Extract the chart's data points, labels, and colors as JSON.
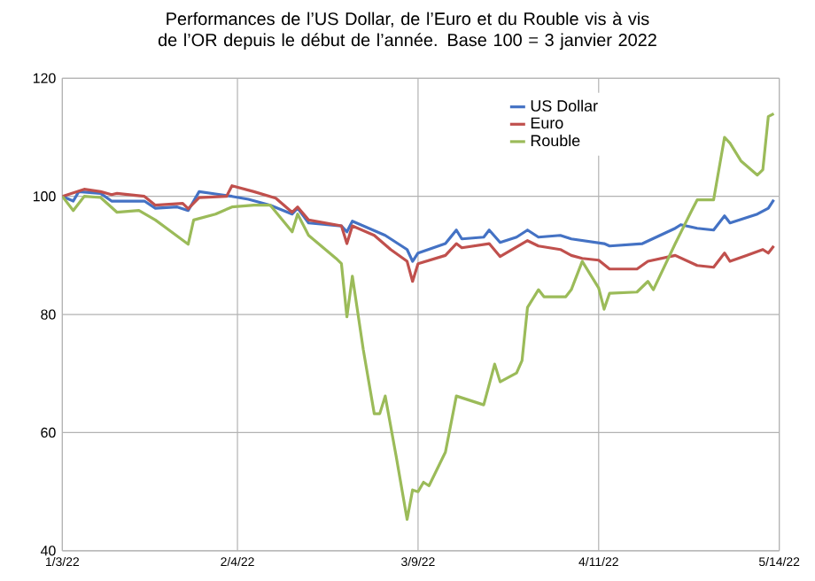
{
  "chart_data": {
    "type": "line",
    "title": "Performances de l’US Dollar, de l’Euro et du Rouble vis à vis de l’OR depuis le début de l’année. Base 100 = 3 janvier 2022",
    "xlim": [
      "2022-01-03",
      "2022-05-14"
    ],
    "xticks": [
      {
        "value": "2022-01-03",
        "label": "1/3/22"
      },
      {
        "value": "2022-02-04",
        "label": "2/4/22"
      },
      {
        "value": "2022-03-09",
        "label": "3/9/22"
      },
      {
        "value": "2022-04-11",
        "label": "4/11/22"
      },
      {
        "value": "2022-05-14",
        "label": "5/14/22"
      }
    ],
    "ylim": [
      40,
      120
    ],
    "yticks": [
      40,
      60,
      80,
      100,
      120
    ],
    "grid": true,
    "legend": "top right",
    "series": [
      {
        "name": "US Dollar",
        "color": "#4472c4",
        "x": [
          "2022-01-03",
          "2022-01-05",
          "2022-01-06",
          "2022-01-10",
          "2022-01-12",
          "2022-01-18",
          "2022-01-20",
          "2022-01-24",
          "2022-01-26",
          "2022-01-28",
          "2022-01-31",
          "2022-02-03",
          "2022-02-06",
          "2022-02-10",
          "2022-02-14",
          "2022-02-15",
          "2022-02-17",
          "2022-02-23",
          "2022-02-24",
          "2022-02-25",
          "2022-03-03",
          "2022-03-07",
          "2022-03-08",
          "2022-03-09",
          "2022-03-14",
          "2022-03-16",
          "2022-03-17",
          "2022-03-21",
          "2022-03-22",
          "2022-03-24",
          "2022-03-27",
          "2022-03-29",
          "2022-03-31",
          "2022-04-04",
          "2022-04-06",
          "2022-04-12",
          "2022-04-13",
          "2022-04-19",
          "2022-04-25",
          "2022-04-26",
          "2022-04-29",
          "2022-05-02",
          "2022-05-04",
          "2022-05-05",
          "2022-05-10",
          "2022-05-12",
          "2022-05-13"
        ],
        "values": [
          100,
          99.2,
          100.8,
          100.5,
          99.2,
          99.2,
          98,
          98.2,
          97.6,
          100.8,
          100.4,
          100,
          99.5,
          98.5,
          97,
          98,
          95.5,
          95,
          94,
          95.8,
          93.4,
          91,
          89,
          90.4,
          92,
          94.3,
          92.8,
          93.1,
          94.3,
          92.2,
          93.1,
          94.3,
          93.1,
          93.4,
          92.8,
          92,
          91.6,
          92,
          94.6,
          95.2,
          94.6,
          94.3,
          96.7,
          95.5,
          97,
          98,
          99.4
        ]
      },
      {
        "name": "Euro",
        "color": "#c0504d",
        "x": [
          "2022-01-03",
          "2022-01-07",
          "2022-01-10",
          "2022-01-12",
          "2022-01-13",
          "2022-01-18",
          "2022-01-20",
          "2022-01-25",
          "2022-01-26",
          "2022-01-28",
          "2022-02-02",
          "2022-02-03",
          "2022-02-07",
          "2022-02-11",
          "2022-02-14",
          "2022-02-15",
          "2022-02-17",
          "2022-02-23",
          "2022-02-24",
          "2022-02-25",
          "2022-03-01",
          "2022-03-04",
          "2022-03-07",
          "2022-03-08",
          "2022-03-09",
          "2022-03-14",
          "2022-03-16",
          "2022-03-17",
          "2022-03-22",
          "2022-03-24",
          "2022-03-29",
          "2022-03-31",
          "2022-04-04",
          "2022-04-06",
          "2022-04-08",
          "2022-04-11",
          "2022-04-13",
          "2022-04-18",
          "2022-04-20",
          "2022-04-25",
          "2022-04-29",
          "2022-05-02",
          "2022-05-04",
          "2022-05-05",
          "2022-05-08",
          "2022-05-11",
          "2022-05-12",
          "2022-05-13"
        ],
        "values": [
          100,
          101.2,
          100.8,
          100.3,
          100.5,
          100,
          98.5,
          98.8,
          97.9,
          99.8,
          100,
          101.8,
          100.8,
          99.7,
          97.3,
          98.2,
          96,
          95,
          92,
          95,
          93.4,
          91,
          89,
          85.6,
          88.6,
          90,
          92,
          91.3,
          92,
          89.8,
          92.5,
          91.6,
          91,
          90,
          89.5,
          89.2,
          87.7,
          87.7,
          89,
          90,
          88.3,
          88,
          90.4,
          89,
          90,
          91,
          90.4,
          91.6
        ]
      },
      {
        "name": "Rouble",
        "color": "#9bbb59",
        "x": [
          "2022-01-03",
          "2022-01-05",
          "2022-01-07",
          "2022-01-10",
          "2022-01-13",
          "2022-01-17",
          "2022-01-20",
          "2022-01-26",
          "2022-01-27",
          "2022-01-31",
          "2022-02-03",
          "2022-02-07",
          "2022-02-10",
          "2022-02-14",
          "2022-02-15",
          "2022-02-17",
          "2022-02-22",
          "2022-02-23",
          "2022-02-24",
          "2022-02-25",
          "2022-02-27",
          "2022-03-01",
          "2022-03-02",
          "2022-03-03",
          "2022-03-05",
          "2022-03-07",
          "2022-03-08",
          "2022-03-09",
          "2022-03-10",
          "2022-03-11",
          "2022-03-14",
          "2022-03-16",
          "2022-03-18",
          "2022-03-21",
          "2022-03-23",
          "2022-03-24",
          "2022-03-27",
          "2022-03-28",
          "2022-03-29",
          "2022-03-31",
          "2022-04-01",
          "2022-04-05",
          "2022-04-06",
          "2022-04-08",
          "2022-04-11",
          "2022-04-12",
          "2022-04-13",
          "2022-04-18",
          "2022-04-20",
          "2022-04-21",
          "2022-04-25",
          "2022-04-28",
          "2022-04-29",
          "2022-05-02",
          "2022-05-04",
          "2022-05-05",
          "2022-05-07",
          "2022-05-10",
          "2022-05-11",
          "2022-05-12",
          "2022-05-13"
        ],
        "values": [
          100,
          97.6,
          100,
          99.8,
          97.3,
          97.6,
          96,
          91.9,
          96,
          97,
          98.2,
          98.5,
          98.5,
          94,
          97,
          93.4,
          89.5,
          88.6,
          79.6,
          86.5,
          74,
          63.2,
          63.2,
          66.2,
          56,
          45.3,
          50.3,
          50,
          51.6,
          51,
          56.7,
          66.2,
          65.6,
          64.7,
          71.6,
          68.6,
          70.1,
          72.2,
          81.2,
          84.2,
          83,
          83,
          84.2,
          89,
          84.5,
          80.9,
          83.6,
          83.8,
          85.6,
          84.2,
          92,
          97.6,
          99.4,
          99.4,
          110,
          109,
          106,
          103.6,
          104.5,
          113.5,
          114
        ]
      }
    ]
  }
}
